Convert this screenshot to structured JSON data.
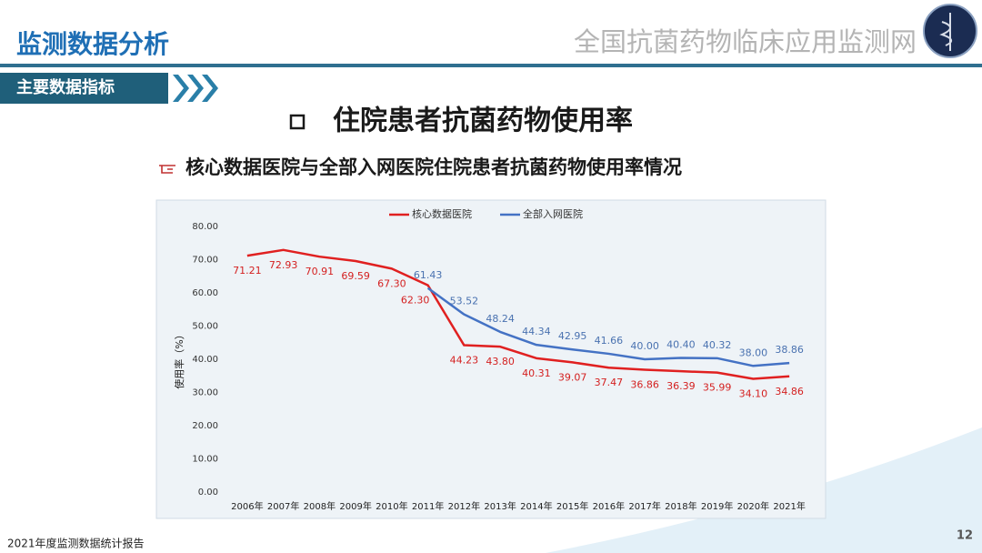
{
  "header": {
    "title": "监测数据分析",
    "site": "全国抗菌药物临床应用监测网",
    "section": "主要数据指标"
  },
  "heading": "住院患者抗菌药物使用率",
  "subheading": "核心数据医院与全部入网医院住院患者抗菌药物使用率情况",
  "footer": {
    "report": "2021年度监测数据统计报告",
    "page": "12"
  },
  "chart_data": {
    "type": "line",
    "ylabel": "使用率（%）",
    "categories": [
      "2006年",
      "2007年",
      "2008年",
      "2009年",
      "2010年",
      "2011年",
      "2012年",
      "2013年",
      "2014年",
      "2015年",
      "2016年",
      "2017年",
      "2018年",
      "2019年",
      "2020年",
      "2021年"
    ],
    "series": [
      {
        "name": "核心数据医院",
        "color": "#e02020",
        "values": [
          71.21,
          72.93,
          70.91,
          69.59,
          67.3,
          62.3,
          44.23,
          43.8,
          40.31,
          39.07,
          37.47,
          36.86,
          36.39,
          35.99,
          34.1,
          34.86
        ],
        "value_labels": [
          "71.21",
          "72.93",
          "70.91",
          "69.59",
          "67.30",
          "62.30",
          "44.23",
          "43.80",
          "40.31",
          "39.07",
          "37.47",
          "36.86",
          "36.39",
          "35.99",
          "34.10",
          "34.86"
        ]
      },
      {
        "name": "全部入网医院",
        "color": "#4472c4",
        "values": [
          null,
          null,
          null,
          null,
          null,
          61.43,
          53.52,
          48.24,
          44.34,
          42.95,
          41.66,
          40.0,
          40.4,
          40.32,
          38.0,
          38.86
        ],
        "value_labels": [
          null,
          null,
          null,
          null,
          null,
          "61.43",
          "53.52",
          "48.24",
          "44.34",
          "42.95",
          "41.66",
          "40.00",
          "40.40",
          "40.32",
          "38.00",
          "38.86"
        ]
      }
    ],
    "ylim": [
      0,
      80
    ],
    "yticks": [
      {
        "value": 0,
        "label": "0.00"
      },
      {
        "value": 10,
        "label": "10.00"
      },
      {
        "value": 20,
        "label": "20.00"
      },
      {
        "value": 30,
        "label": "30.00"
      },
      {
        "value": 40,
        "label": "40.00"
      },
      {
        "value": 50,
        "label": "50.00"
      },
      {
        "value": 60,
        "label": "60.00"
      },
      {
        "value": 70,
        "label": "70.00"
      },
      {
        "value": 80,
        "label": "80.00"
      }
    ],
    "grid": false,
    "legend": "top"
  }
}
